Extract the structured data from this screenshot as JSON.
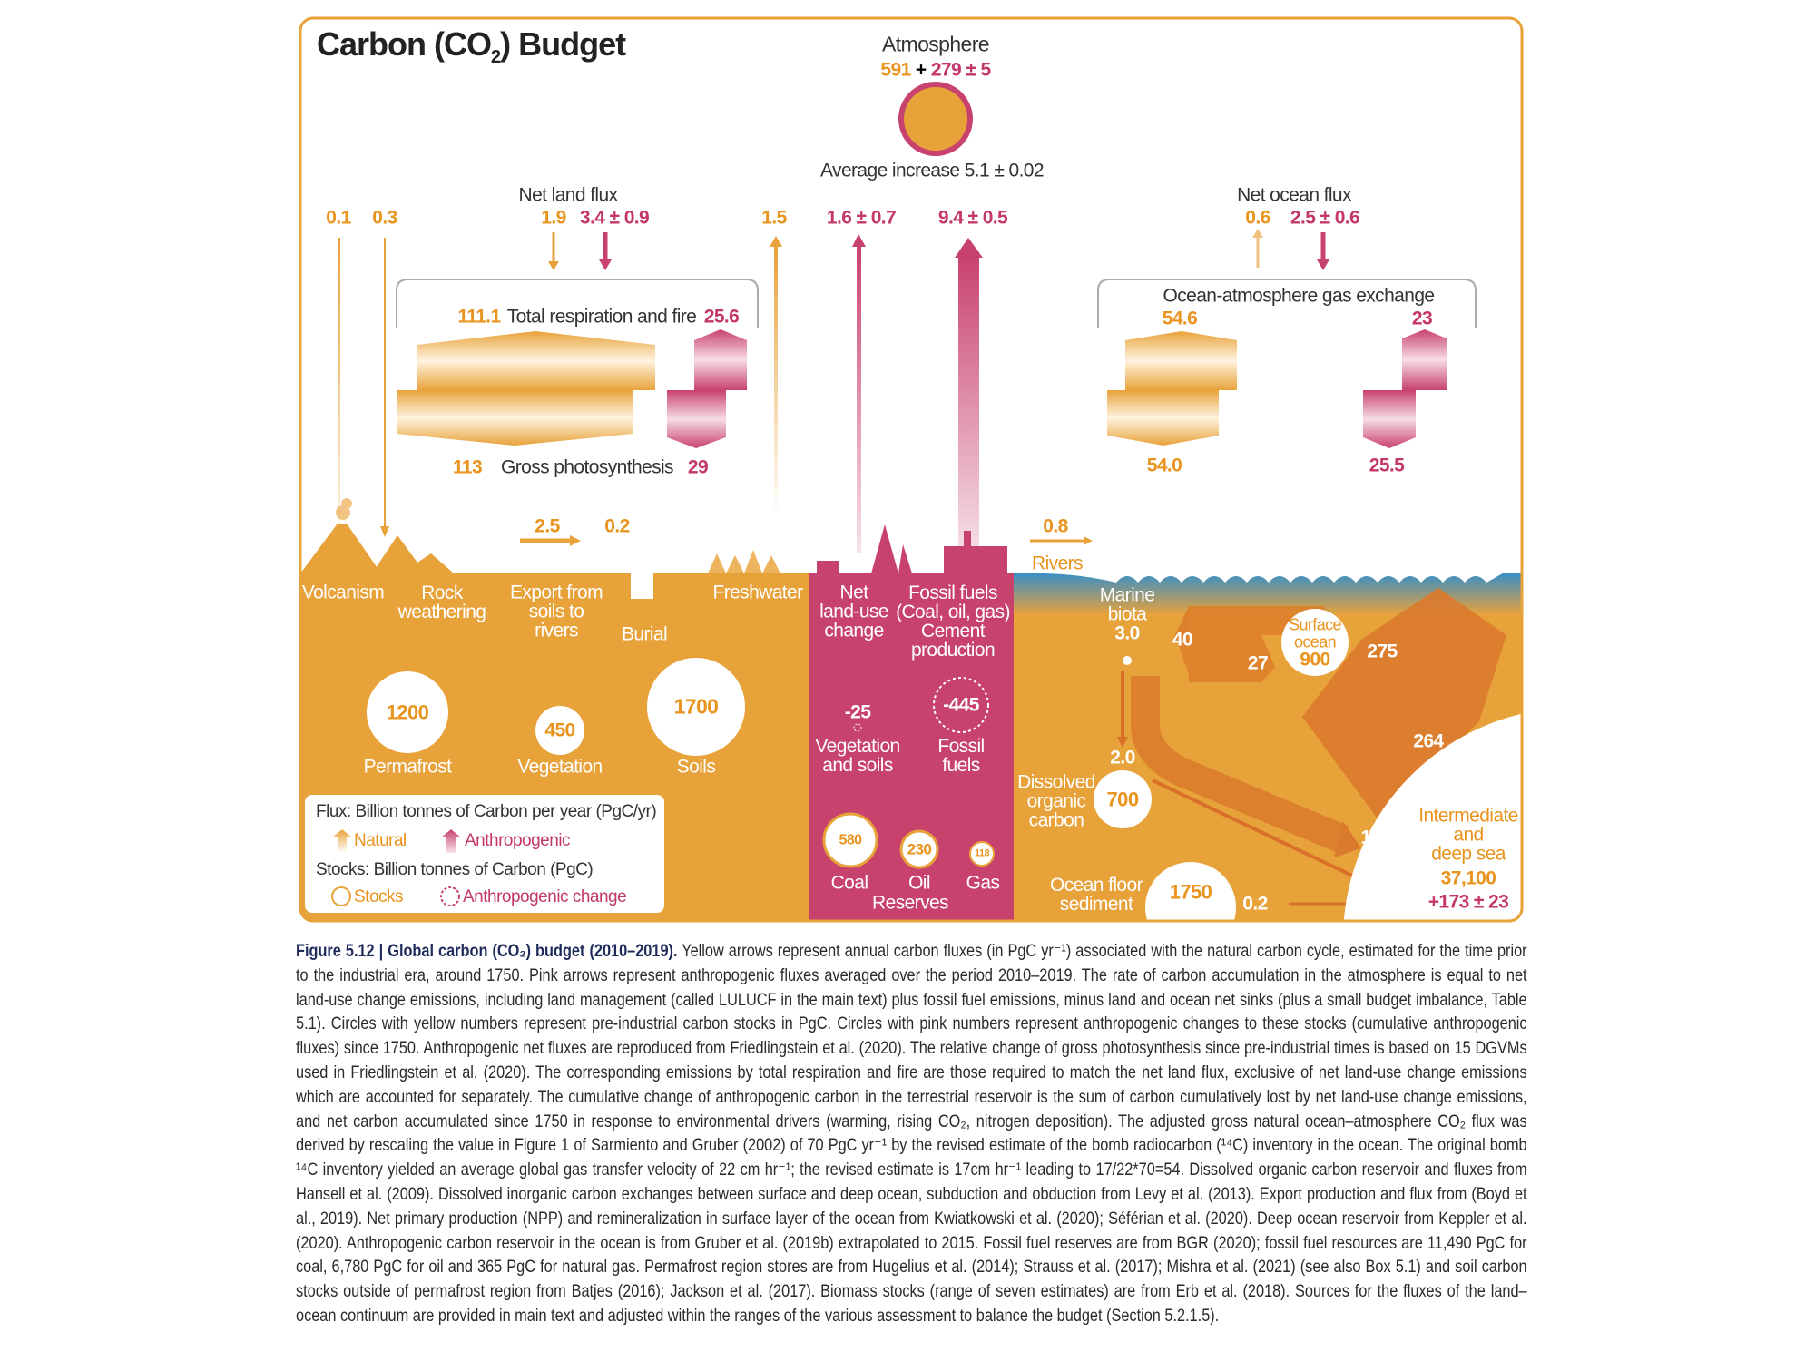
{
  "colors": {
    "natural": "#E8A23A",
    "anthropogenic": "#C8426E",
    "ocean_surface": "#3B8FC4",
    "frame": "#E8A23A"
  },
  "title": {
    "main": "Carbon (CO",
    "sub": "2",
    "end": ") Budget"
  },
  "atmosphere": {
    "label": "Atmosphere",
    "natural": "591",
    "plus": "+",
    "anthro": "279 ± 5",
    "increase": "Average increase 5.1 ± 0.02"
  },
  "land": {
    "net_land_flux": "Net land flux",
    "fluxes": {
      "volcanism": "0.1",
      "weathering": "0.3",
      "net_land_nat": "1.9",
      "net_land_anth": "3.4 ± 0.9",
      "freshwater": "1.5",
      "landuse": "1.6 ± 0.7",
      "fossil": "9.4 ± 0.5",
      "export": "2.5",
      "burial": "0.2",
      "rivers": "0.8"
    },
    "respiration": {
      "nat": "111.1",
      "label": "Total respiration and fire",
      "anth": "25.6"
    },
    "photosynthesis": {
      "nat": "113",
      "label": "Gross photosynthesis",
      "anth": "29"
    },
    "processes": {
      "volcanism": "Volcanism",
      "rock": [
        "Rock",
        "weathering"
      ],
      "export": [
        "Export from",
        "soils to",
        "rivers"
      ],
      "burial": "Burial",
      "freshwater": "Freshwater",
      "landuse": [
        "Net",
        "land-use",
        "change"
      ],
      "fossil": [
        "Fossil fuels",
        "(Coal, oil, gas)",
        "Cement",
        "production"
      ],
      "rivers": "Rivers"
    },
    "stocks": [
      {
        "value": "1200",
        "label": "Permafrost"
      },
      {
        "value": "450",
        "label": "Vegetation"
      },
      {
        "value": "1700",
        "label": "Soils"
      }
    ],
    "anthro_changes": [
      {
        "value": "-25",
        "label": [
          "Vegetation",
          "and soils"
        ]
      },
      {
        "value": "-445",
        "label": [
          "Fossil",
          "fuels"
        ]
      }
    ],
    "reserves": {
      "label": "Reserves",
      "items": [
        {
          "value": "580",
          "label": "Coal"
        },
        {
          "value": "230",
          "label": "Oil"
        },
        {
          "value": "118",
          "label": "Gas"
        }
      ]
    }
  },
  "ocean": {
    "net_ocean_flux": "Net ocean flux",
    "nat": "0.6",
    "anth": "2.5 ± 0.6",
    "gas_exchange": {
      "label": "Ocean-atmosphere gas exchange",
      "up_nat": "54.6",
      "up_anth": "23",
      "down_nat": "54.0",
      "down_anth": "25.5"
    },
    "marine_biota": [
      "Marine",
      "biota"
    ],
    "marine_biota_value": "3.0",
    "npp": "40",
    "remin": "27",
    "surface": {
      "label": [
        "Surface",
        "ocean"
      ],
      "value": "900"
    },
    "up_deep": "275",
    "down_deep": "264",
    "doc": {
      "label": [
        "Dissolved",
        "organic",
        "carbon"
      ],
      "value": "700",
      "flux": "2.0"
    },
    "export_flux": "11.0",
    "sediment_flux": "2.0",
    "burial_flux": "0.2",
    "sediment": {
      "label": [
        "Ocean floor",
        "sediment"
      ],
      "value": "1750"
    },
    "deep": {
      "label": [
        "Intermediate",
        "and",
        "deep sea"
      ],
      "value": "37,100",
      "anth": "+173 ± 23"
    }
  },
  "legend": {
    "flux_title": "Flux: Billion tonnes of Carbon per year (PgC/yr)",
    "natural": "Natural",
    "anthropogenic": "Anthropogenic",
    "stock_title": "Stocks: Billion tonnes of Carbon (PgC)",
    "stocks": "Stocks",
    "anthro_change": "Anthropogenic change"
  },
  "caption": {
    "bold": "Figure 5.12 | Global carbon (CO₂) budget (2010–2019).",
    "text": " Yellow arrows represent annual carbon fluxes (in PgC yr⁻¹) associated with the natural carbon cycle, estimated for the time prior to the industrial era, around 1750. Pink arrows represent anthropogenic fluxes averaged over the period 2010–2019. The rate of carbon accumulation in the atmosphere is equal to net land-use change emissions, including land management (called LULUCF in the main text) plus fossil fuel emissions, minus land and ocean net sinks (plus a small budget imbalance, Table 5.1). Circles with yellow numbers represent pre-industrial carbon stocks in PgC. Circles with pink numbers represent anthropogenic changes to these stocks (cumulative anthropogenic fluxes) since 1750. Anthropogenic net fluxes are reproduced from Friedlingstein et al. (2020). The relative change of gross photosynthesis since pre-industrial times is based on 15 DGVMs used in Friedlingstein et al. (2020). The corresponding emissions by total respiration and fire are those required to match the net land flux, exclusive of net land-use change emissions which are accounted for separately. The cumulative change of anthropogenic carbon in the terrestrial reservoir is the sum of carbon cumulatively lost by net land-use change emissions, and net carbon accumulated since 1750 in response to environmental drivers (warming, rising CO₂, nitrogen deposition). The adjusted gross natural ocean–atmosphere CO₂ flux was derived by rescaling the value in Figure 1 of Sarmiento and Gruber (2002) of 70 PgC yr⁻¹ by the revised estimate of the bomb radiocarbon (¹⁴C) inventory in the ocean. The original bomb ¹⁴C inventory yielded an average global gas transfer velocity of 22 cm hr⁻¹; the revised estimate is 17cm hr⁻¹ leading to 17/22*70=54. Dissolved organic carbon reservoir and fluxes from Hansell et al. (2009). Dissolved inorganic carbon exchanges between surface and deep ocean, subduction and obduction from Levy et al. (2013). Export production and flux from (Boyd et al., 2019). Net primary production (NPP) and remineralization in surface layer of the ocean from Kwiatkowski et al. (2020); Séférian et al. (2020). Deep ocean reservoir from Keppler et al. (2020). Anthropogenic carbon reservoir in the ocean is from Gruber et al. (2019b) extrapolated to 2015. Fossil fuel reserves are from BGR (2020); fossil fuel resources are 11,490 PgC for coal, 6,780 PgC for oil and 365 PgC for natural gas. Permafrost region stores are from Hugelius et al. (2014); Strauss et al. (2017); Mishra et al. (2021) (see also Box 5.1) and soil carbon stocks outside of permafrost region from Batjes (2016); Jackson et al. (2017). Biomass stocks (range of seven estimates) are from Erb et al. (2018). Sources for the fluxes of the land–ocean continuum are provided in main text and adjusted within the ranges of the various assessment to balance the budget (Section 5.2.1.5)."
  }
}
